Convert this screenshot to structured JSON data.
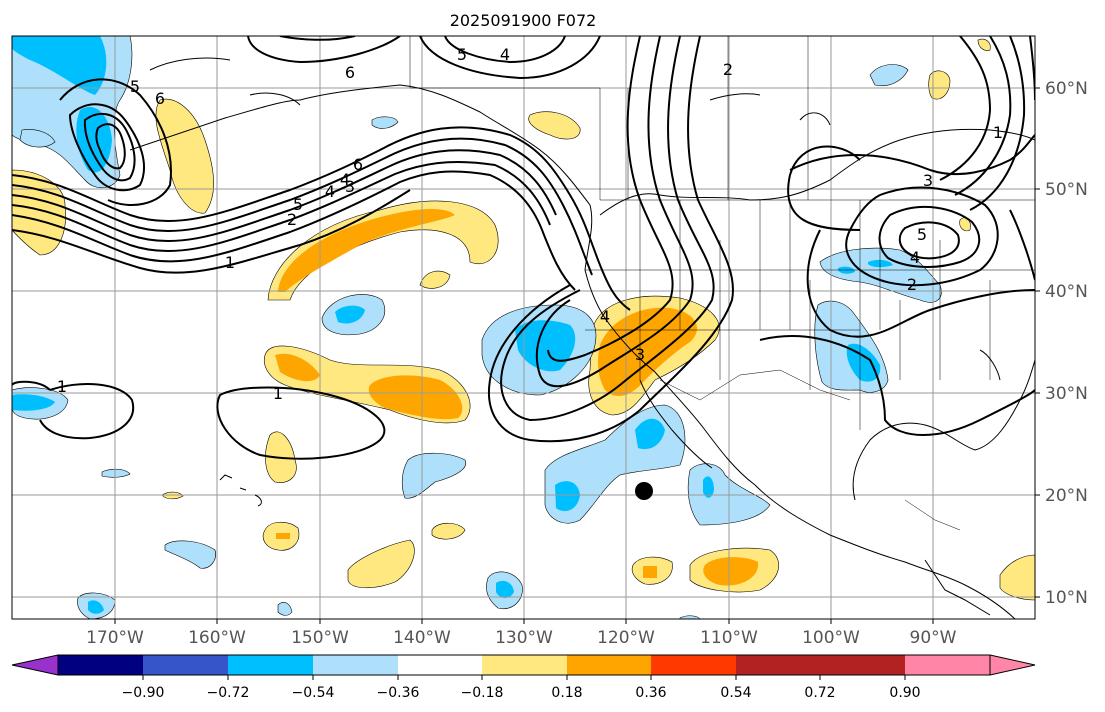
{
  "title": "2025091900 F072",
  "longitude_labels": [
    "170°W",
    "160°W",
    "150°W",
    "140°W",
    "130°W",
    "120°W",
    "110°W",
    "100°W",
    "90°W"
  ],
  "latitude_labels": [
    "60°N",
    "50°N",
    "40°N",
    "30°N",
    "20°N",
    "10°N"
  ],
  "contour_labels": [
    "6",
    "5",
    "4",
    "4",
    "5",
    "6",
    "5",
    "4",
    "3",
    "2",
    "1",
    "1",
    "1",
    "6",
    "4",
    "3",
    "2",
    "3",
    "4",
    "5",
    "2",
    "1"
  ],
  "colorbar": {
    "tick_labels": [
      "−0.90",
      "−0.72",
      "−0.54",
      "−0.36",
      "−0.18",
      "0.18",
      "0.36",
      "0.54",
      "0.72",
      "0.90"
    ],
    "colors": [
      "#9932cc",
      "#000080",
      "#3655c8",
      "#00bfff",
      "#aee0fb",
      "#ffffff",
      "#ffe880",
      "#ffa500",
      "#ff3a00",
      "#b22222",
      "#ff86a6"
    ]
  },
  "marker": "storm-center"
}
